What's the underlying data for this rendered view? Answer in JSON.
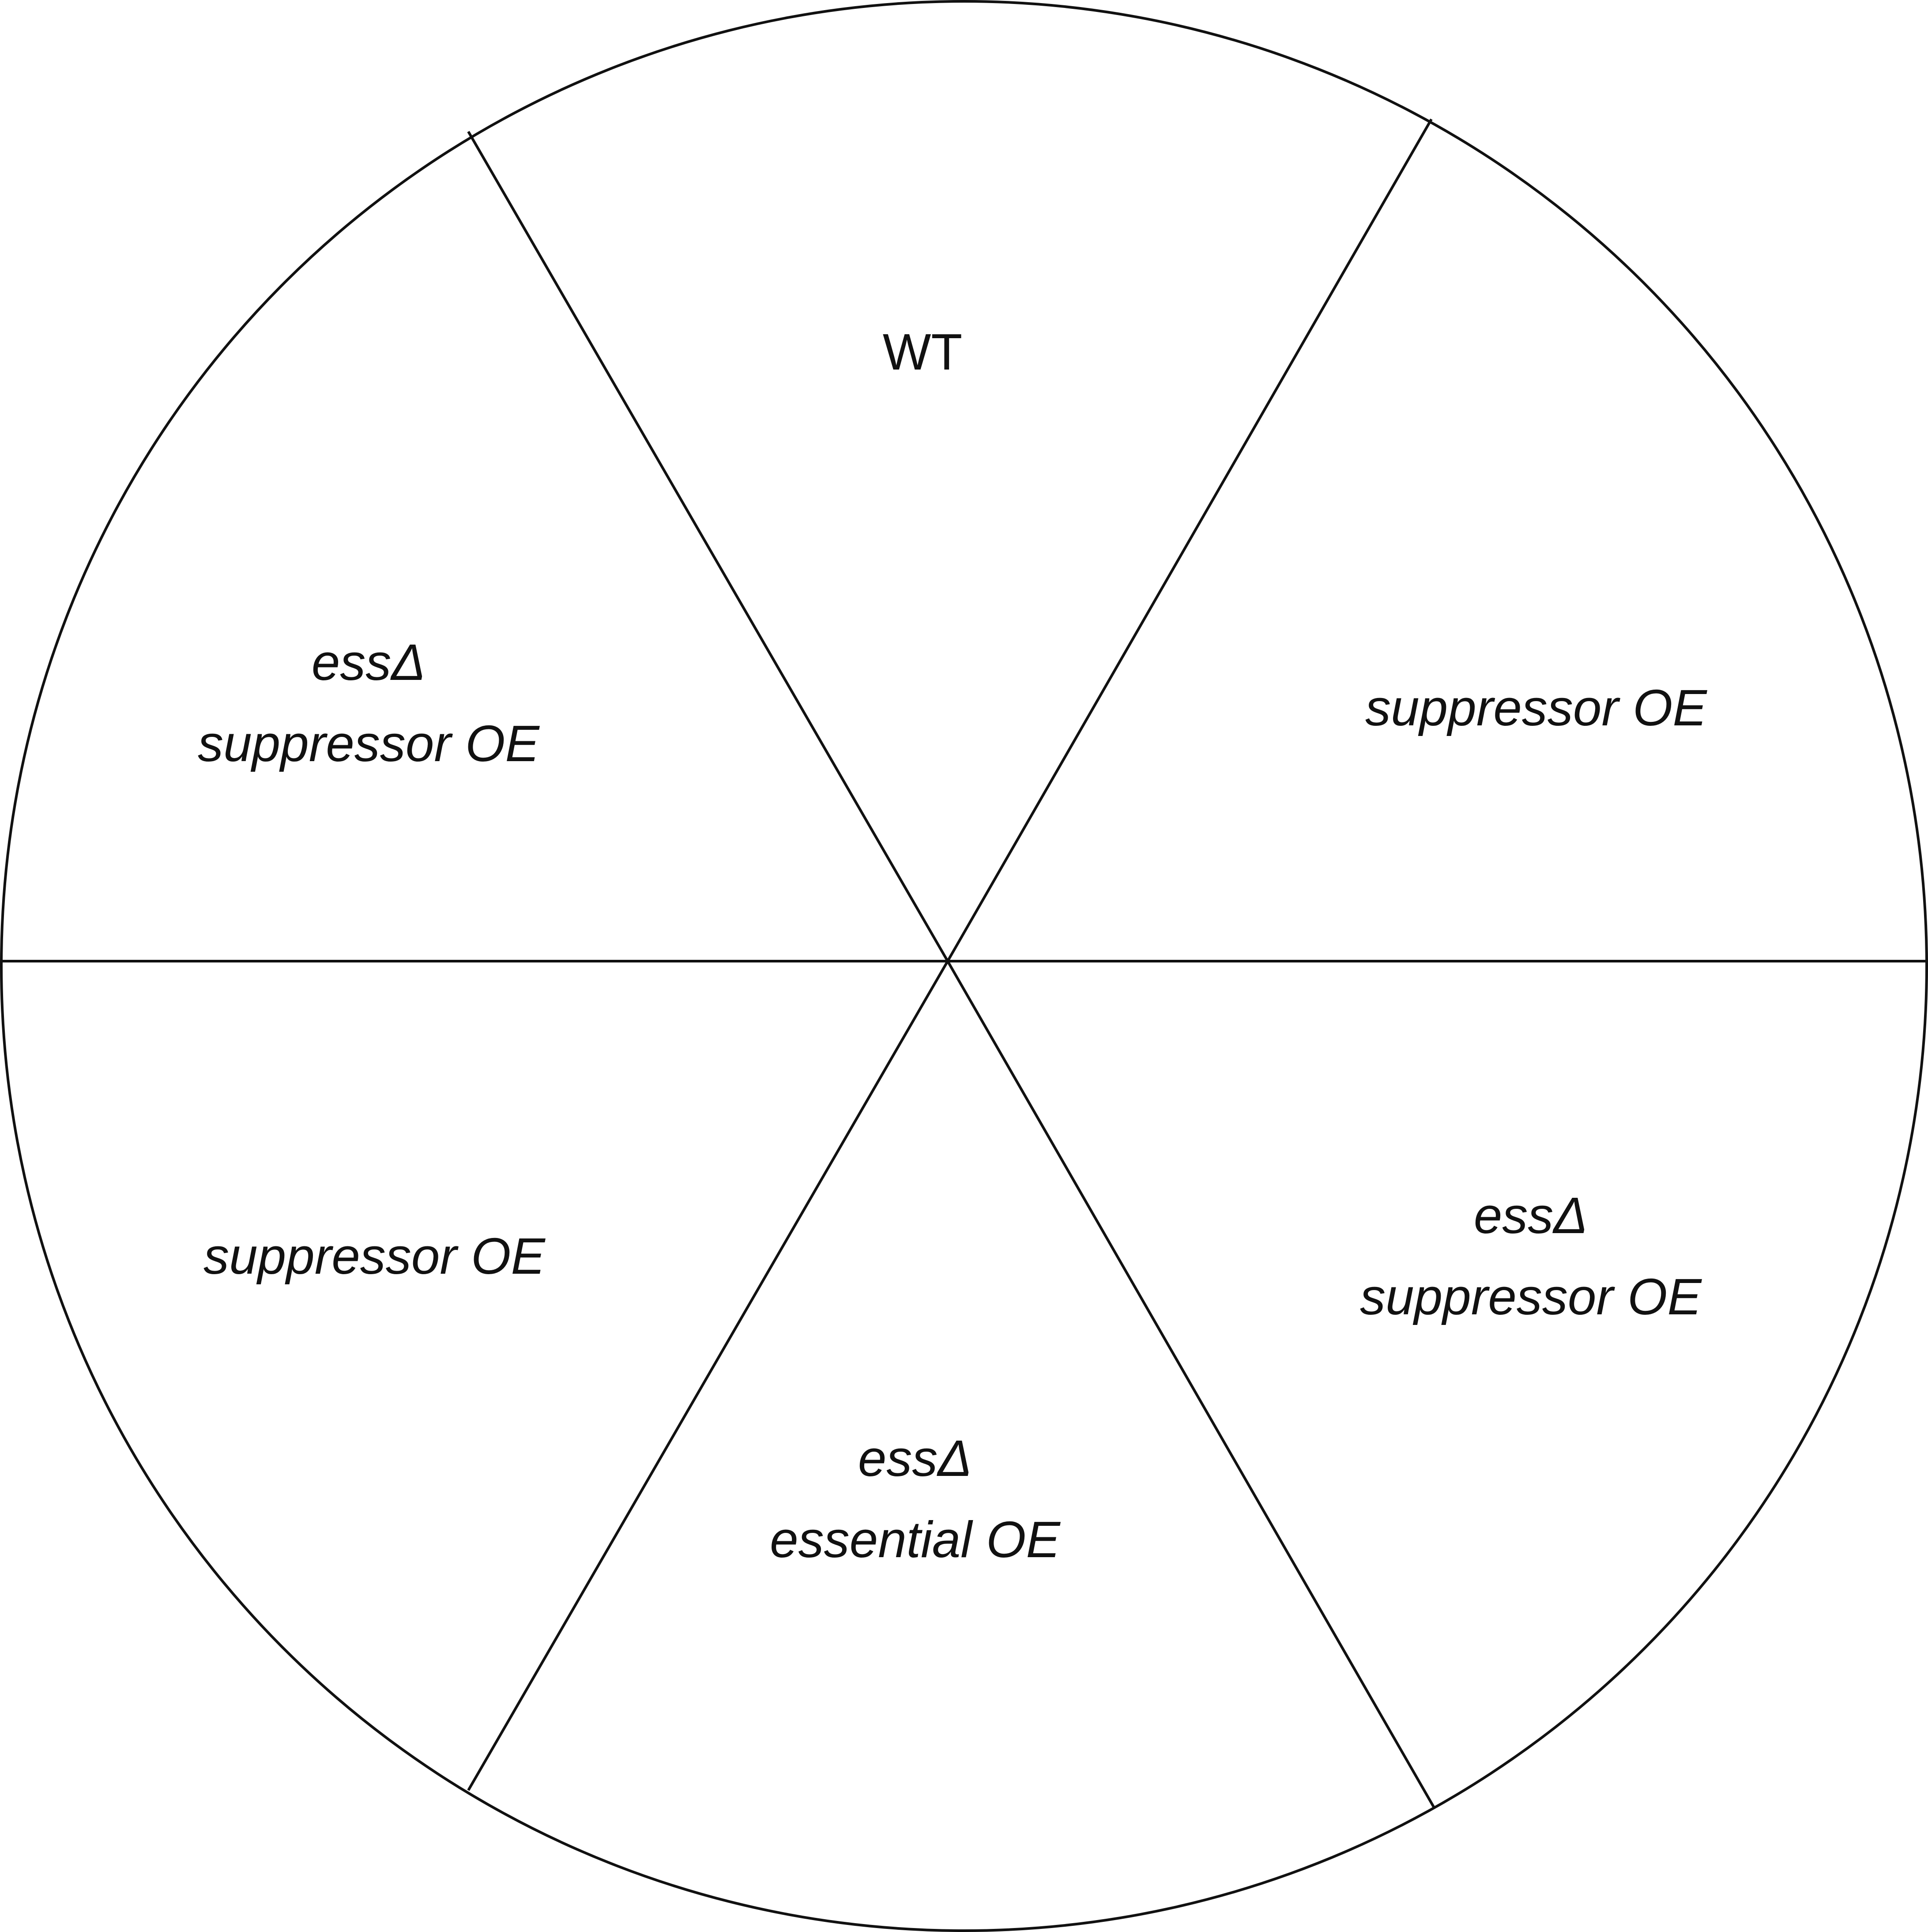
{
  "plate": {
    "sectors": [
      {
        "id": "top",
        "lines": [
          "WT"
        ],
        "italic": false
      },
      {
        "id": "upper-right",
        "lines": [
          "suppressor OE"
        ],
        "italic": true
      },
      {
        "id": "lower-right",
        "lines": [
          "essΔ",
          "suppressor OE"
        ],
        "italic": true
      },
      {
        "id": "bottom",
        "lines": [
          "essΔ",
          "essential OE"
        ],
        "italic": true
      },
      {
        "id": "lower-left",
        "lines": [
          "suppressor OE"
        ],
        "italic": true
      },
      {
        "id": "upper-left",
        "lines": [
          "essΔ",
          "suppressor OE"
        ],
        "italic": true
      }
    ]
  },
  "colors": {
    "line": "#111111",
    "background": "#ffffff",
    "text": "#111111"
  }
}
